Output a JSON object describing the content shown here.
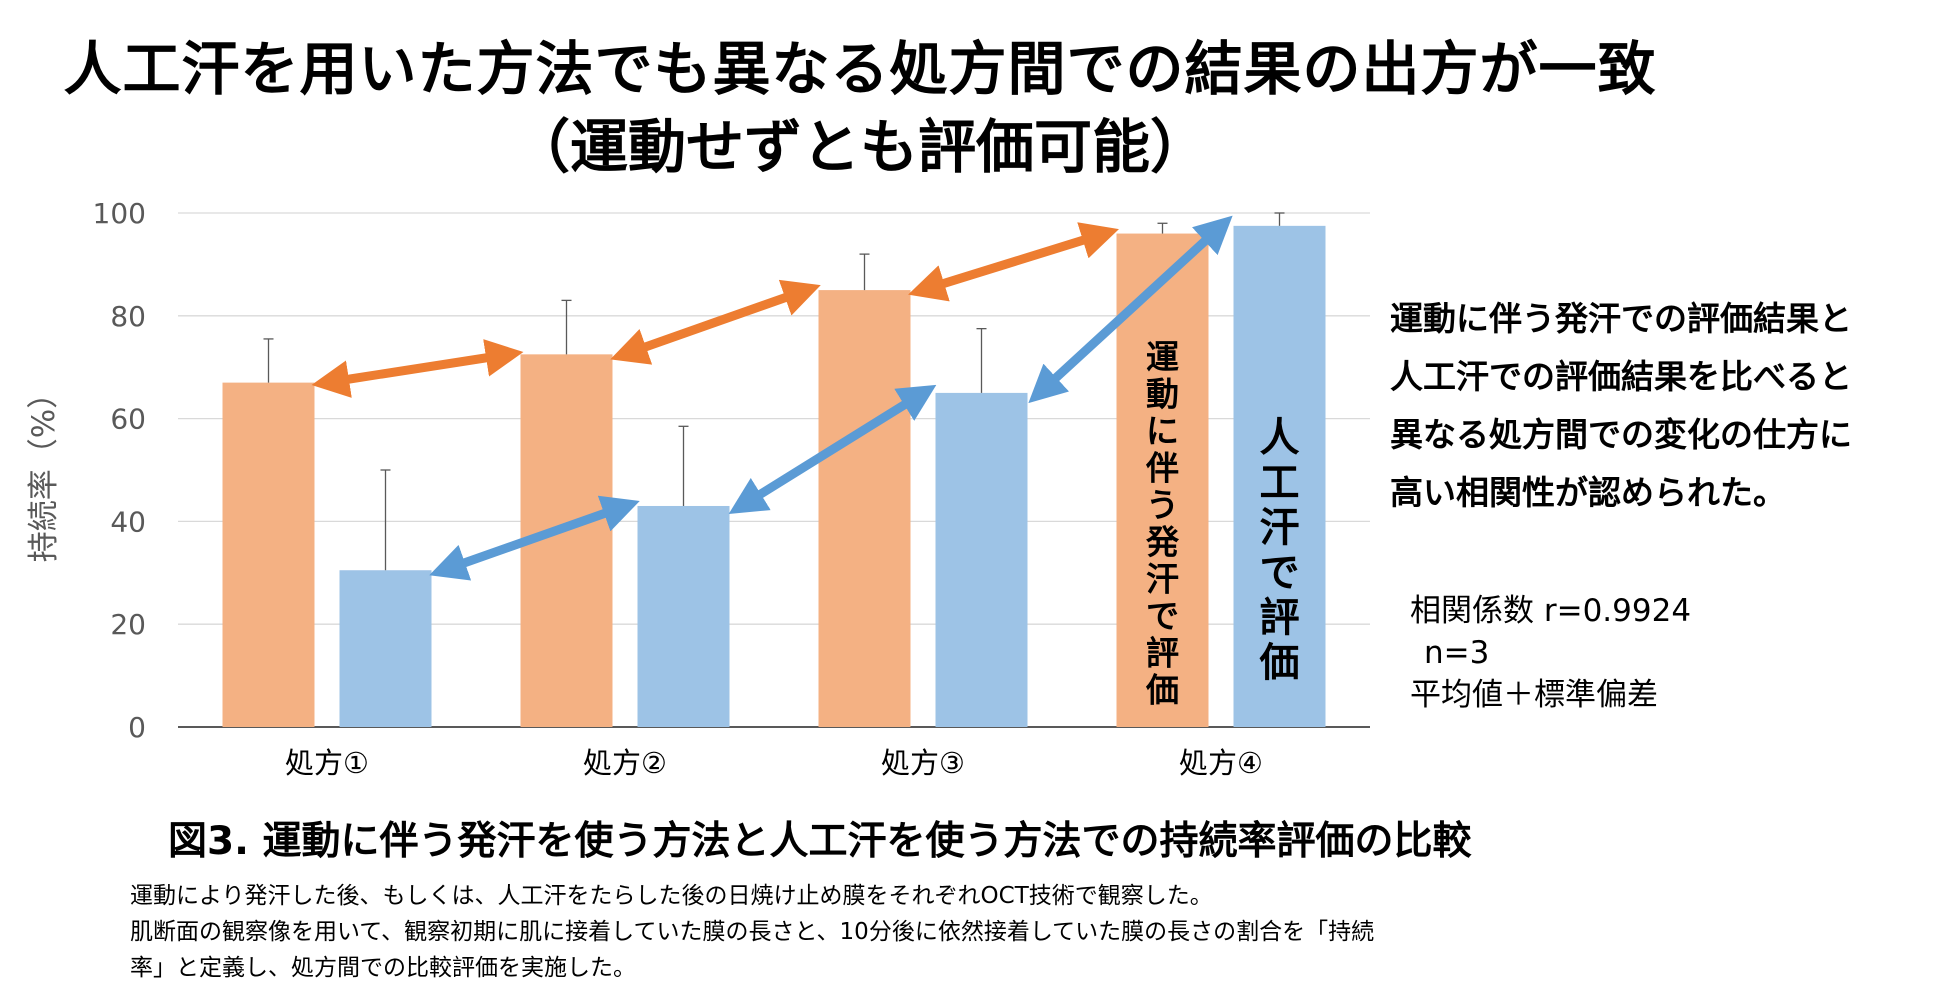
{
  "title_line1": "人工汗を用いた方法でも異なる処方間での結果の出方が一致",
  "title_line2": "（運動せずとも評価可能）",
  "chart_data": {
    "type": "bar",
    "ylabel": "持続率（%）",
    "ylim": [
      0,
      100
    ],
    "yticks": [
      0,
      20,
      40,
      60,
      80,
      100
    ],
    "grid": true,
    "categories": [
      "処方①",
      "処方②",
      "処方③",
      "処方④"
    ],
    "series": [
      {
        "name": "運動に伴う発汗で評価",
        "color": "#f4b183",
        "values": [
          67,
          72.5,
          85,
          96
        ],
        "error": [
          8.5,
          10.5,
          7,
          2
        ]
      },
      {
        "name": "人工汗で評価",
        "color": "#9dc3e6",
        "values": [
          30.5,
          43,
          65,
          97.5
        ],
        "error": [
          19.5,
          15.5,
          12.5,
          2.5
        ]
      }
    ],
    "arrow_colors": {
      "sweat": "#ed7d31",
      "artificial": "#5b9bd5"
    }
  },
  "note_lines": [
    "運動に伴う発汗での評価結果と",
    "人工汗での評価結果を比べると",
    "異なる処方間での変化の仕方に",
    "高い相関性が認められた。"
  ],
  "stats": {
    "corr": "相関係数 r=0.9924",
    "n": "n=3",
    "method": "平均値＋標準偏差"
  },
  "caption": "図3. 運動に伴う発汗を使う方法と人工汗を使う方法での持続率評価の比較",
  "desc_lines": [
    "運動により発汗した後、もしくは、人工汗をたらした後の日焼け止め膜をそれぞれOCT技術で観察した。",
    "肌断面の観察像を用いて、観察初期に肌に接着していた膜の長さと、10分後に依然接着していた膜の長さの割合を「持続",
    "率」と定義し、処方間での比較評価を実施した。"
  ]
}
